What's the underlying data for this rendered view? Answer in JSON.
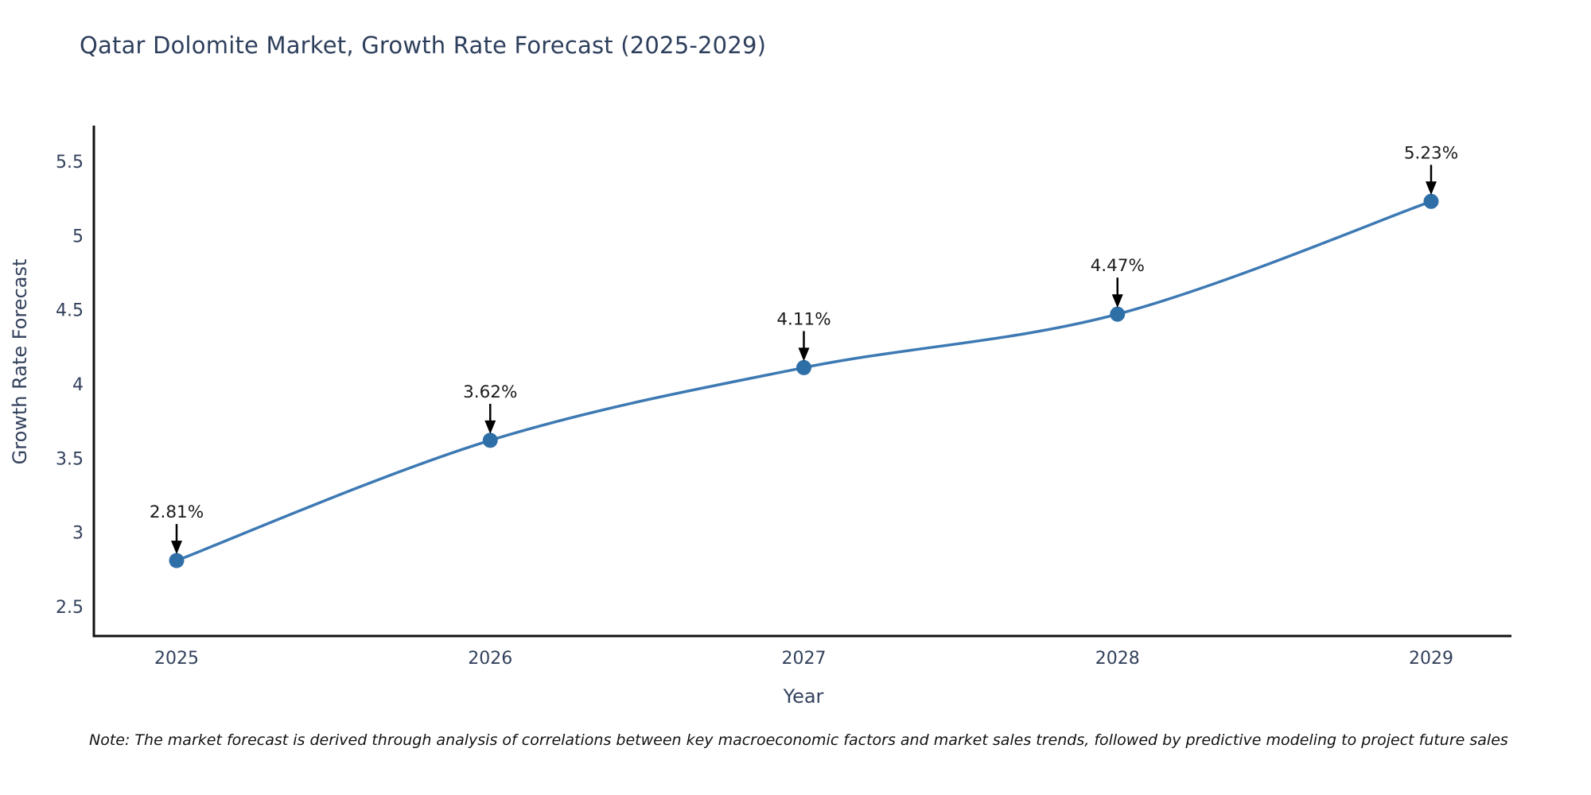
{
  "header": {
    "title": "Qatar Dolomite Market, Growth Rate Forecast (2025-2029)"
  },
  "note": {
    "text": "Note: The market forecast is derived through analysis of correlations between key macroeconomic factors and market sales trends, followed by predictive modeling to project future sales"
  },
  "chart_data": {
    "type": "line",
    "title": "Qatar Dolomite Market, Growth Rate Forecast (2025-2029)",
    "xlabel": "Year",
    "ylabel": "Growth Rate Forecast",
    "categories": [
      "2025",
      "2026",
      "2027",
      "2028",
      "2029"
    ],
    "series": [
      {
        "name": "Growth Rate Forecast",
        "values": [
          2.81,
          3.62,
          4.11,
          4.47,
          5.23
        ],
        "point_labels": [
          "2.81%",
          "3.62%",
          "4.11%",
          "4.47%",
          "5.23%"
        ]
      }
    ],
    "ytick_labels": [
      "2.5",
      "3",
      "3.5",
      "4",
      "4.5",
      "5",
      "5.5"
    ],
    "yticks": [
      2.5,
      3.0,
      3.5,
      4.0,
      4.5,
      5.0,
      5.5
    ],
    "ylim": [
      2.25,
      5.72
    ],
    "grid": false,
    "legend": "none",
    "line_shape": "spline",
    "annotations_have_arrows": true,
    "colors": {
      "line": "#3d79b3",
      "marker": "#2f6fa8",
      "axis": "#111111",
      "tick_label": "#33415c",
      "annotation": "#1a1a1a",
      "arrow": "#000000"
    }
  }
}
